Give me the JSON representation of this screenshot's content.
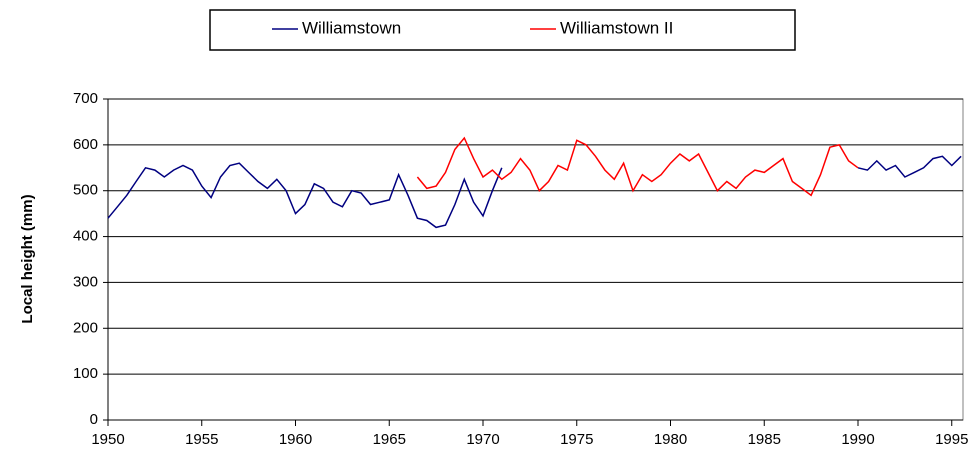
{
  "chart_data": {
    "type": "line",
    "y_label": "Local height (mm)",
    "xlim": [
      1950,
      1995.6
    ],
    "ylim": [
      0,
      700
    ],
    "xticks": [
      1950,
      1955,
      1960,
      1965,
      1970,
      1975,
      1980,
      1985,
      1990,
      1995
    ],
    "yticks": [
      0,
      100,
      200,
      300,
      400,
      500,
      600,
      700
    ],
    "grid": true,
    "legend": "top",
    "series": [
      {
        "name": "Williamstown",
        "color": "#000080",
        "x": [
          1950,
          1950.5,
          1951,
          1951.5,
          1952,
          1952.5,
          1953,
          1953.5,
          1954,
          1954.5,
          1955,
          1955.5,
          1956,
          1956.5,
          1957,
          1957.5,
          1958,
          1958.5,
          1959,
          1959.5,
          1960,
          1960.5,
          1961,
          1961.5,
          1962,
          1962.5,
          1963,
          1963.5,
          1964,
          1964.5,
          1965,
          1965.5,
          1966,
          1966.5,
          1967,
          1967.5,
          1968,
          1968.5,
          1969,
          1969.5,
          1970,
          1970.5,
          1971,
          1980,
          1990,
          1990.5,
          1991,
          1991.5,
          1992,
          1992.5,
          1993,
          1993.5,
          1994,
          1994.5,
          1995,
          1995.5
        ],
        "values": [
          440,
          465,
          490,
          520,
          550,
          545,
          530,
          545,
          555,
          545,
          510,
          485,
          530,
          555,
          560,
          540,
          520,
          505,
          525,
          500,
          450,
          470,
          515,
          505,
          475,
          465,
          500,
          495,
          470,
          475,
          480,
          535,
          490,
          440,
          435,
          420,
          425,
          470,
          525,
          475,
          445,
          500,
          550,
          null,
          550,
          545,
          565,
          545,
          555,
          530,
          540,
          550,
          570,
          575,
          555,
          575
        ]
      },
      {
        "name": "Williamstown II",
        "color": "#ff0000",
        "x": [
          1966.5,
          1967,
          1967.5,
          1968,
          1968.5,
          1969,
          1969.5,
          1970,
          1970.5,
          1971,
          1971.5,
          1972,
          1972.5,
          1973,
          1973.5,
          1974,
          1974.5,
          1975,
          1975.5,
          1976,
          1976.5,
          1977,
          1977.5,
          1978,
          1978.5,
          1979,
          1979.5,
          1980,
          1980.5,
          1981,
          1981.5,
          1982,
          1982.5,
          1983,
          1983.5,
          1984,
          1984.5,
          1985,
          1985.5,
          1986,
          1986.5,
          1987,
          1987.5,
          1988,
          1988.5,
          1989,
          1989.5,
          1990
        ],
        "values": [
          530,
          505,
          510,
          540,
          590,
          615,
          570,
          530,
          545,
          525,
          540,
          570,
          545,
          500,
          520,
          555,
          545,
          610,
          600,
          575,
          545,
          525,
          560,
          500,
          535,
          520,
          535,
          560,
          580,
          565,
          580,
          540,
          500,
          520,
          505,
          530,
          545,
          540,
          555,
          570,
          520,
          505,
          490,
          535,
          595,
          600,
          565,
          550
        ]
      }
    ]
  }
}
